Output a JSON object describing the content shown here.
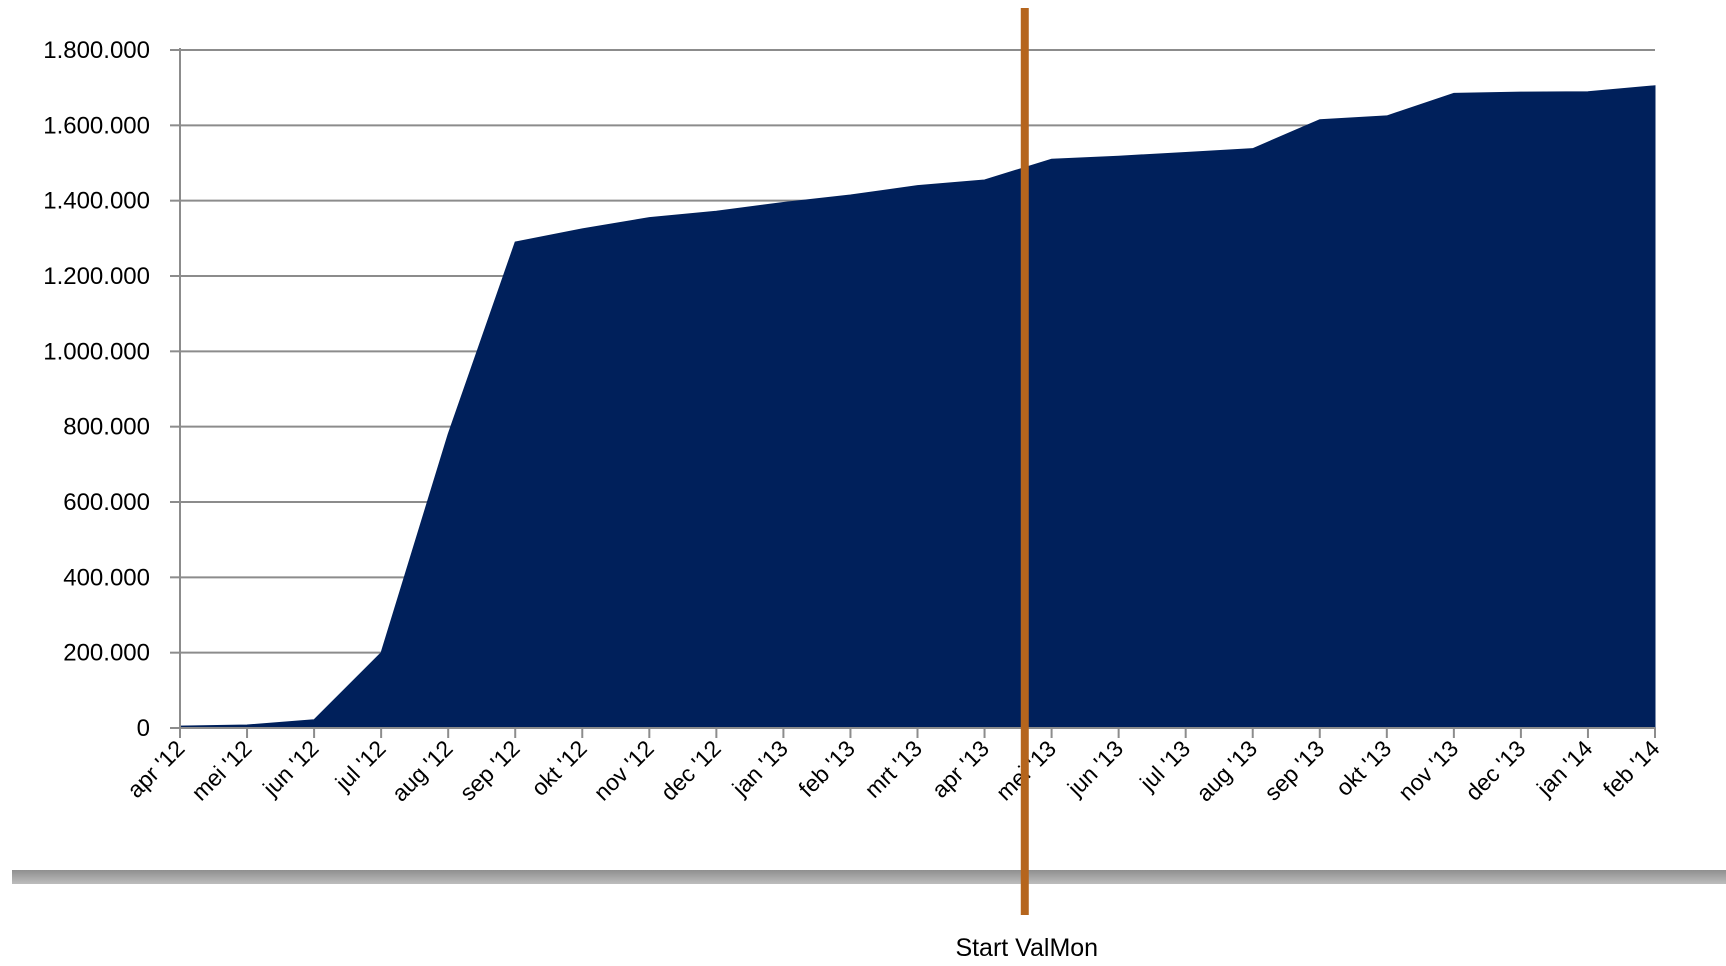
{
  "chart_data": {
    "type": "area",
    "categories": [
      "apr '12",
      "mei '12",
      "jun '12",
      "jul '12",
      "aug '12",
      "sep '12",
      "okt '12",
      "nov '12",
      "dec '12",
      "jan '13",
      "feb '13",
      "mrt '13",
      "apr '13",
      "mei '13",
      "jun '13",
      "jul '13",
      "aug '13",
      "sep '13",
      "okt '13",
      "nov '13",
      "dec '13",
      "jan '14",
      "feb '14"
    ],
    "series": [
      {
        "values": [
          5000,
          8000,
          22000,
          200000,
          780000,
          1290000,
          1325000,
          1355000,
          1372000,
          1395000,
          1415000,
          1440000,
          1455000,
          1510000,
          1518000,
          1528000,
          1538000,
          1615000,
          1625000,
          1685000,
          1688000,
          1689000,
          1705000
        ]
      }
    ],
    "yticks": [
      "0",
      "200.000",
      "400.000",
      "600.000",
      "800.000",
      "1.000.000",
      "1.200.000",
      "1.400.000",
      "1.600.000",
      "1.800.000"
    ],
    "ylim": [
      0,
      1800000
    ],
    "grid": true,
    "legend": "none",
    "annotation": {
      "label": "Start ValMon",
      "position": "between apr '13 and mei '13"
    },
    "colors": {
      "area": "#00205b",
      "marker_line": "#b5651d",
      "grid": "#8c8c8c",
      "shadow_bar": "#8f8f8f"
    },
    "title": "",
    "xlabel": "",
    "ylabel": ""
  }
}
